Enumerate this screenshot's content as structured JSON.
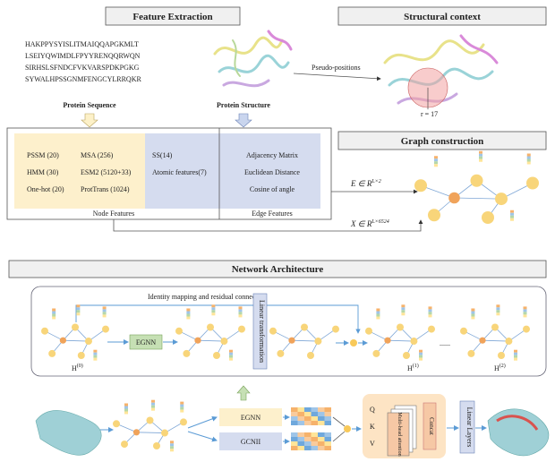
{
  "feature_extraction": {
    "title": "Feature Extraction",
    "sequence": [
      "HAKPPYSYISLITMAIQQAPGKMLT",
      "LSEIYQWIMDLFPYYRENQQRWQN",
      "SIRHSLSFNDCFVKVARSPDKPGKG",
      "SYWALHPSSGNMFENGCYLRRQKR"
    ],
    "sequence_label": "Protein Sequence",
    "structure_label": "Protein Structure",
    "node_features": {
      "col1": [
        "PSSM (20)",
        "HMM (30)",
        "One-hot (20)"
      ],
      "col2": [
        "MSA (256)",
        "ESM2 (5120+33)",
        "ProtTrans (1024)"
      ],
      "col3": [
        "SS(14)",
        "Atomic features(7)"
      ],
      "label": "Node Features"
    },
    "edge_features": {
      "items": [
        "Adjacency Matrix",
        "Euclidean Distance",
        "Cosine of angle"
      ],
      "label": "Edge Features"
    }
  },
  "structural_context": {
    "title": "Structural context",
    "arrow_label": "Pseudo-positions",
    "radius_label": "r = 17"
  },
  "graph_construction": {
    "title": "Graph construction",
    "edge_matrix": {
      "base": "E ∈ R",
      "sup": "L×2"
    },
    "node_matrix": {
      "base": "X ∈ R",
      "sup": "L×6524"
    }
  },
  "network_architecture": {
    "title": "Network Architecture",
    "residual_label": "Identity mapping and residual connection",
    "egnn": "EGNN",
    "linear": "Linear transformation",
    "h0": {
      "base": "H",
      "sup": "(0)"
    },
    "h1": {
      "base": "H",
      "sup": "(1)"
    },
    "h2": {
      "base": "H",
      "sup": "(2)"
    },
    "ellipsis": "......",
    "branch_egnn": "EGNN",
    "branch_gcnii": "GCNII",
    "q": "Q",
    "k": "K",
    "v": "V",
    "attention": "Multi-head attention",
    "concat": "Concat",
    "linear_layers": "Linear Layers"
  }
}
